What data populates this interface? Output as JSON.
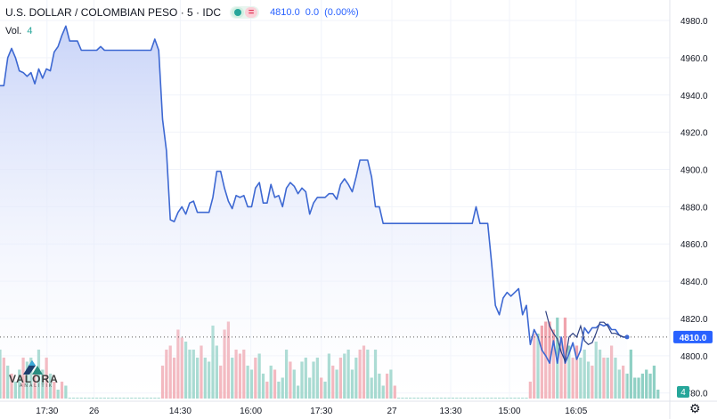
{
  "header": {
    "title": "U.S. DOLLAR / COLOMBIAN PESO · 5 · IDC",
    "last": "4810.0",
    "change": "0.0",
    "change_pct": "(0.00%)",
    "eq_symbol": "="
  },
  "volume": {
    "label": "Vol.",
    "value": "4"
  },
  "watermark": {
    "brand": "VALORA",
    "sub": "ANALITIK"
  },
  "badges": {
    "price": "4810.0",
    "volume": "4"
  },
  "colors": {
    "line": "#3d68d2",
    "area_top": "#c9d4f8",
    "area_bottom": "#ffffff",
    "vol_up": "#8fd0c4",
    "vol_down": "#f0a4ad",
    "price_badge": "#2962ff",
    "vol_badge": "#26a69a",
    "grid": "#f0f3fa"
  },
  "chart_data": {
    "type": "area",
    "symbol": "USD/COP",
    "interval": "5",
    "y_ticks": [
      "4980.0",
      "4960.0",
      "4940.0",
      "4920.0",
      "4900.0",
      "4880.0",
      "4860.0",
      "4840.0",
      "4820.0",
      "4800.0",
      "4780.0"
    ],
    "ylim": [
      4777,
      4991
    ],
    "x_ticks": [
      "17:30",
      "26",
      "14:30",
      "16:00",
      "17:30",
      "27",
      "13:30",
      "15:00",
      "16:05"
    ],
    "grid": true,
    "price_series": [
      4945,
      4945,
      4960,
      4965,
      4960,
      4953,
      4952,
      4950,
      4952,
      4946,
      4954,
      4949,
      4954,
      4953,
      4963,
      4966,
      4972,
      4977,
      4969,
      4969,
      4969,
      4964,
      4964,
      4964,
      4964,
      4964,
      4966,
      4964,
      4964,
      4964,
      4964,
      4964,
      4964,
      4964,
      4964,
      4964,
      4964,
      4964,
      4964,
      4964,
      4970,
      4964,
      4927,
      4910,
      4873,
      4872,
      4877,
      4880,
      4876,
      4882,
      4883,
      4877,
      4877,
      4877,
      4877,
      4885,
      4899,
      4899,
      4890,
      4883,
      4879,
      4886,
      4885,
      4886,
      4880,
      4880,
      4890,
      4893,
      4882,
      4882,
      4892,
      4885,
      4886,
      4880,
      4890,
      4893,
      4891,
      4887,
      4890,
      4888,
      4876,
      4882,
      4885,
      4885,
      4885,
      4887,
      4887,
      4884,
      4892,
      4895,
      4892,
      4888,
      4896,
      4905,
      4905,
      4905,
      4896,
      4880,
      4880,
      4871,
      4871,
      4871,
      4871,
      4871,
      4871,
      4871,
      4871,
      4871,
      4871,
      4871,
      4871,
      4871,
      4871,
      4871,
      4871,
      4871,
      4871,
      4871,
      4871,
      4871,
      4871,
      4871,
      4871,
      4880,
      4871,
      4871,
      4871,
      4850,
      4827,
      4822,
      4831,
      4834,
      4832,
      4834,
      4836,
      4822,
      4827,
      4806,
      4814,
      4810,
      4803,
      4800,
      4796,
      4808,
      4796,
      4810,
      4796,
      4801,
      4807,
      4798,
      4803,
      4815,
      4812,
      4815,
      4815,
      4817,
      4816,
      4817,
      4814,
      4814,
      4811,
      4810,
      4810
    ],
    "secondary_series_end": [
      4824,
      4816,
      4812,
      4809,
      4802,
      4797,
      4810,
      4812,
      4810,
      4816,
      4808,
      4806,
      4807,
      4812,
      4818,
      4818,
      4816,
      4812,
      4812,
      4811,
      4810,
      4810
    ],
    "volume": [
      12,
      10,
      8,
      6,
      4,
      7,
      10,
      9,
      10,
      6,
      12,
      7,
      10,
      6,
      4,
      2,
      4,
      3,
      0,
      0,
      0,
      0,
      0,
      0,
      0,
      0,
      0,
      0,
      0,
      0,
      0,
      0,
      0,
      0,
      0,
      0,
      0,
      0,
      0,
      0,
      0,
      0,
      8,
      12,
      13,
      10,
      17,
      15,
      14,
      12,
      12,
      10,
      13,
      10,
      9,
      18,
      13,
      8,
      17,
      19,
      10,
      12,
      11,
      12,
      8,
      7,
      10,
      11,
      6,
      4,
      8,
      7,
      4,
      5,
      12,
      9,
      7,
      3,
      9,
      10,
      5,
      9,
      10,
      5,
      4,
      11,
      8,
      7,
      10,
      11,
      12,
      7,
      10,
      12,
      13,
      12,
      5,
      12,
      6,
      3,
      6,
      7,
      3,
      0,
      0,
      0,
      0,
      0,
      0,
      0,
      0,
      0,
      0,
      0,
      0,
      0,
      0,
      0,
      0,
      0,
      0,
      0,
      0,
      0,
      0,
      0,
      0,
      0,
      0,
      0,
      0,
      0,
      0,
      0,
      0,
      0,
      0,
      4,
      16,
      16,
      18,
      19,
      19,
      17,
      20,
      15,
      20,
      13,
      10,
      13,
      10,
      12,
      9,
      8,
      14,
      12,
      10,
      10,
      13,
      10,
      7,
      8,
      6,
      12,
      5,
      5,
      6,
      7,
      6,
      8,
      2
    ],
    "volume_colors": [
      "u",
      "d",
      "u",
      "d",
      "u",
      "u",
      "d",
      "u",
      "u",
      "d",
      "u",
      "u",
      "d",
      "u",
      "d",
      "u",
      "d",
      "u",
      "u",
      "u",
      "u",
      "u",
      "u",
      "u",
      "u",
      "u",
      "u",
      "u",
      "u",
      "u",
      "u",
      "u",
      "u",
      "u",
      "u",
      "u",
      "u",
      "u",
      "u",
      "u",
      "u",
      "u",
      "d",
      "d",
      "d",
      "d",
      "d",
      "d",
      "u",
      "u",
      "u",
      "u",
      "d",
      "u",
      "u",
      "u",
      "u",
      "d",
      "d",
      "d",
      "u",
      "d",
      "d",
      "d",
      "u",
      "u",
      "d",
      "u",
      "u",
      "d",
      "u",
      "d",
      "u",
      "u",
      "u",
      "d",
      "u",
      "u",
      "u",
      "u",
      "u",
      "u",
      "u",
      "d",
      "u",
      "u",
      "d",
      "u",
      "d",
      "u",
      "u",
      "u",
      "u",
      "d",
      "d",
      "u",
      "u",
      "u",
      "u",
      "u",
      "d",
      "u",
      "d",
      "u",
      "u",
      "u",
      "u",
      "u",
      "u",
      "u",
      "u",
      "u",
      "u",
      "u",
      "u",
      "u",
      "u",
      "u",
      "u",
      "u",
      "u",
      "u",
      "u",
      "u",
      "u",
      "u",
      "u",
      "u",
      "u",
      "u",
      "u",
      "u",
      "u",
      "u",
      "u",
      "u",
      "u",
      "d",
      "d",
      "u",
      "d",
      "d",
      "d",
      "d",
      "u",
      "d",
      "d",
      "u",
      "d",
      "d",
      "u",
      "u",
      "u",
      "d",
      "u",
      "u",
      "d",
      "u",
      "d",
      "u",
      "u",
      "d",
      "u",
      "u",
      "u",
      "u",
      "u",
      "u"
    ]
  }
}
